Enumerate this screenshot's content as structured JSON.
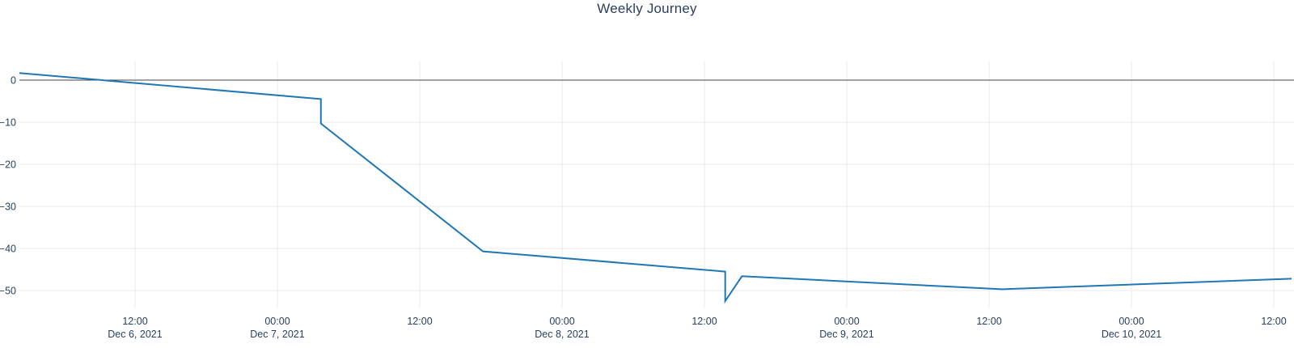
{
  "chart_data": {
    "type": "line",
    "title": "Weekly Journey",
    "xlabel": "",
    "ylabel": "",
    "legend": false,
    "grid": true,
    "colors": {
      "line": "#1f77b4",
      "grid": "#ebebeb",
      "zeroline": "#444444",
      "tick_label": "#2a3f5f",
      "title": "#2a3f5f",
      "background": "#ffffff"
    },
    "x_range": [
      "2021-12-06T02:15",
      "2021-12-10T13:40"
    ],
    "ylim": [
      -53.5,
      4.6
    ],
    "x_axis": {
      "ticks": [
        {
          "t": "2021-12-06T12:00",
          "time": "12:00",
          "date": "Dec 6, 2021"
        },
        {
          "t": "2021-12-07T00:00",
          "time": "00:00",
          "date": "Dec 7, 2021"
        },
        {
          "t": "2021-12-07T12:00",
          "time": "12:00",
          "date": ""
        },
        {
          "t": "2021-12-08T00:00",
          "time": "00:00",
          "date": "Dec 8, 2021"
        },
        {
          "t": "2021-12-08T12:00",
          "time": "12:00",
          "date": ""
        },
        {
          "t": "2021-12-09T00:00",
          "time": "00:00",
          "date": "Dec 9, 2021"
        },
        {
          "t": "2021-12-09T12:00",
          "time": "12:00",
          "date": ""
        },
        {
          "t": "2021-12-10T00:00",
          "time": "00:00",
          "date": "Dec 10, 2021"
        },
        {
          "t": "2021-12-10T12:00",
          "time": "12:00",
          "date": ""
        }
      ]
    },
    "y_axis": {
      "ticks": [
        {
          "value": 0,
          "label": "0"
        },
        {
          "value": -10,
          "label": "−10"
        },
        {
          "value": -20,
          "label": "−20"
        },
        {
          "value": -30,
          "label": "−30"
        },
        {
          "value": -40,
          "label": "−40"
        },
        {
          "value": -50,
          "label": "−50"
        }
      ]
    },
    "series": [
      {
        "name": "Weekly Journey",
        "points": [
          {
            "t": "2021-12-06T02:15",
            "v": 1.7
          },
          {
            "t": "2021-12-07T03:40",
            "v": -4.5
          },
          {
            "t": "2021-12-07T03:40",
            "v": -10.3
          },
          {
            "t": "2021-12-07T17:20",
            "v": -40.7
          },
          {
            "t": "2021-12-08T13:45",
            "v": -45.5
          },
          {
            "t": "2021-12-08T13:45",
            "v": -52.5
          },
          {
            "t": "2021-12-08T15:10",
            "v": -46.6
          },
          {
            "t": "2021-12-09T13:05",
            "v": -49.7
          },
          {
            "t": "2021-12-10T13:30",
            "v": -47.2
          }
        ]
      }
    ]
  }
}
